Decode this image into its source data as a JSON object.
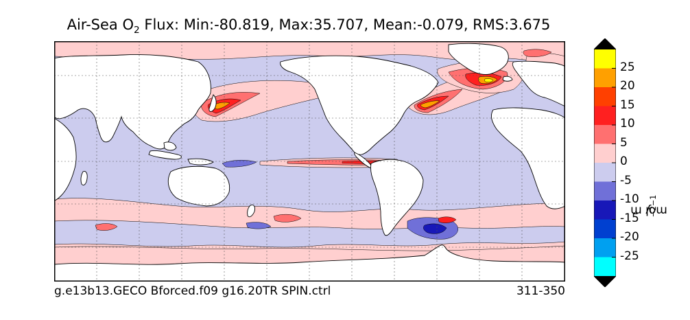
{
  "title": {
    "prefix": "Air-Sea O",
    "sub": "2",
    "suffix": " Flux: Min:-80.819, Max:35.707, Mean:-0.079, RMS:3.675"
  },
  "footer": {
    "case_name": "g.e13b13.GECO Bforced.f09 g16.20TR SPIN.ctrl",
    "years": "311-350"
  },
  "colorbar": {
    "unit_parts": [
      "mol m",
      "−2",
      " y",
      "−1"
    ],
    "ticks": [
      "25",
      "20",
      "15",
      "10",
      "5",
      "0",
      "-5",
      "-10",
      "-15",
      "-20",
      "-25"
    ],
    "levels": [
      {
        "color": "#000000"
      },
      {
        "color": "#ffff00"
      },
      {
        "color": "#ffa000"
      },
      {
        "color": "#ff4000"
      },
      {
        "color": "#ff2020"
      },
      {
        "color": "#ff7070"
      },
      {
        "color": "#ffcfcf"
      },
      {
        "color": "#ccccee"
      },
      {
        "color": "#7070d8"
      },
      {
        "color": "#1818b8"
      },
      {
        "color": "#0040d0"
      },
      {
        "color": "#00a0f0"
      },
      {
        "color": "#00ffff"
      },
      {
        "color": "#000000"
      }
    ]
  },
  "colors": {
    "ocean_base": "#ccccee",
    "pink": "#ffcfcf",
    "salmon": "#ff7070",
    "red": "#ff2020",
    "orange_red": "#ff4000",
    "orange": "#ffa000",
    "yellow": "#ffff00",
    "blue": "#7070d8",
    "deep_blue": "#1818b8",
    "land": "#ffffff"
  }
}
